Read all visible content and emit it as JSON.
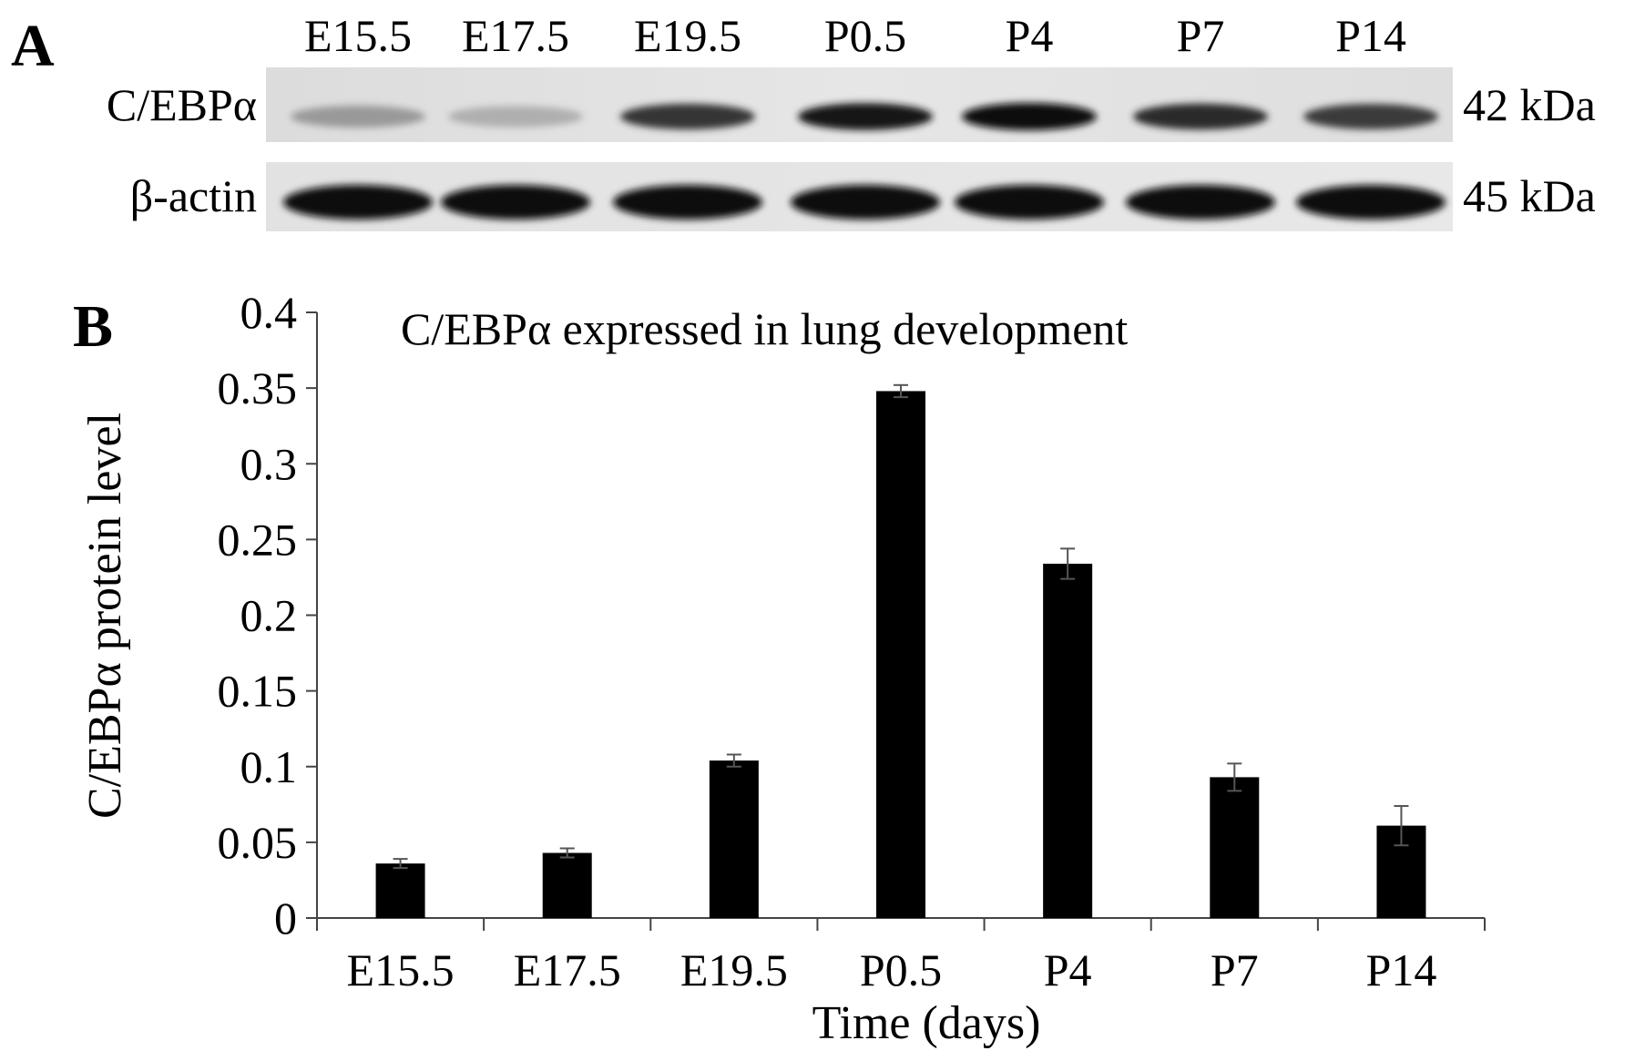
{
  "panel_a": {
    "label": "A",
    "lanes": [
      "E15.5",
      "E17.5",
      "E19.5",
      "P0.5",
      "P4",
      "P7",
      "P14"
    ],
    "blots": [
      {
        "protein": "C/EBPα",
        "size": "42 kDa",
        "band_intensity": [
          0.35,
          0.25,
          0.8,
          0.95,
          1.0,
          0.85,
          0.78
        ]
      },
      {
        "protein": "β-actin",
        "size": "45 kDa",
        "band_intensity": [
          1.0,
          1.0,
          1.0,
          1.0,
          1.0,
          1.0,
          1.0
        ]
      }
    ]
  },
  "panel_b": {
    "label": "B"
  },
  "chart_data": {
    "type": "bar",
    "title": "C/EBPα expressed in lung development",
    "xlabel": "Time (days)",
    "ylabel": "C/EBPα protein level",
    "categories": [
      "E15.5",
      "E17.5",
      "E19.5",
      "P0.5",
      "P4",
      "P7",
      "P14"
    ],
    "values": [
      0.036,
      0.043,
      0.104,
      0.348,
      0.234,
      0.093,
      0.061
    ],
    "errors": [
      0.003,
      0.003,
      0.004,
      0.004,
      0.01,
      0.009,
      0.013
    ],
    "ylim": [
      0,
      0.4
    ],
    "yticks": [
      "0",
      "0.05",
      "0.1",
      "0.15",
      "0.2",
      "0.25",
      "0.3",
      "0.35",
      "0.4"
    ],
    "yticks_values": [
      0,
      0.05,
      0.1,
      0.15,
      0.2,
      0.25,
      0.3,
      0.35,
      0.4
    ],
    "grid": false,
    "bar_color": "#000000",
    "error_bar_color": "#555555"
  }
}
